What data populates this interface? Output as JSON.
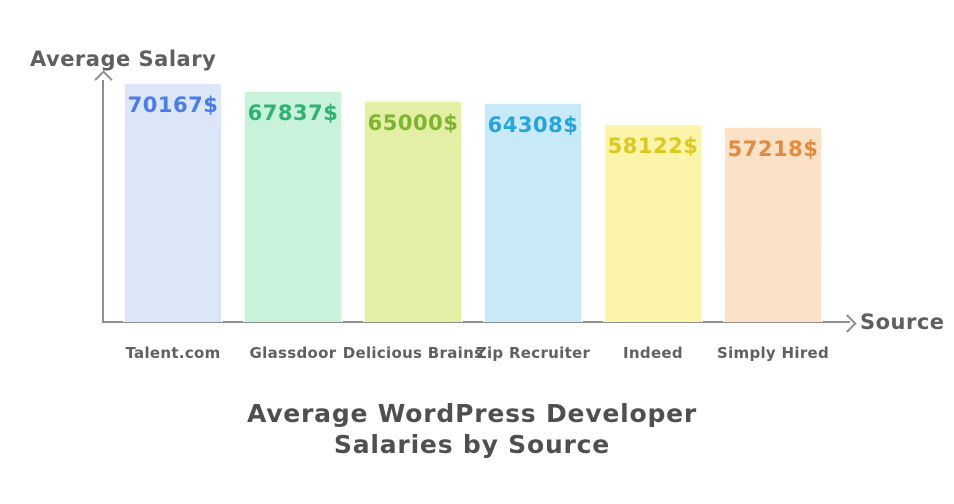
{
  "title": {
    "line1": "Average WordPress Developer",
    "line2": "Salaries by Source"
  },
  "axes": {
    "y_label": "Average Salary",
    "x_label": "Source"
  },
  "chart_data": {
    "type": "bar",
    "title": "Average WordPress Developer Salaries by Source",
    "xlabel": "Source",
    "ylabel": "Average Salary",
    "categories": [
      "Talent.com",
      "Glassdoor",
      "Delicious Brains",
      "Zip Recruiter",
      "Indeed",
      "Simply Hired"
    ],
    "values": [
      70167,
      67837,
      65000,
      64308,
      58122,
      57218
    ],
    "value_labels": [
      "70167$",
      "67837$",
      "65000$",
      "64308$",
      "58122$",
      "57218$"
    ],
    "ylim": [
      0,
      70167
    ],
    "grid": false,
    "legend": false,
    "bar_styles": [
      {
        "fill": "#dbe6f8",
        "text": "#4b7ce8"
      },
      {
        "fill": "#c9f2db",
        "text": "#30b371"
      },
      {
        "fill": "#e2efa4",
        "text": "#7fb431"
      },
      {
        "fill": "#c7e9f8",
        "text": "#27a4da"
      },
      {
        "fill": "#fcf4a9",
        "text": "#ddc822"
      },
      {
        "fill": "#fbe1c6",
        "text": "#e28a41"
      }
    ]
  },
  "colors": {
    "axis": "#8f8f8f",
    "axis_label_text": "#5f5f5f",
    "tick_label_text": "#606060",
    "title_text": "#4f4f4f",
    "background": "#ffffff"
  }
}
